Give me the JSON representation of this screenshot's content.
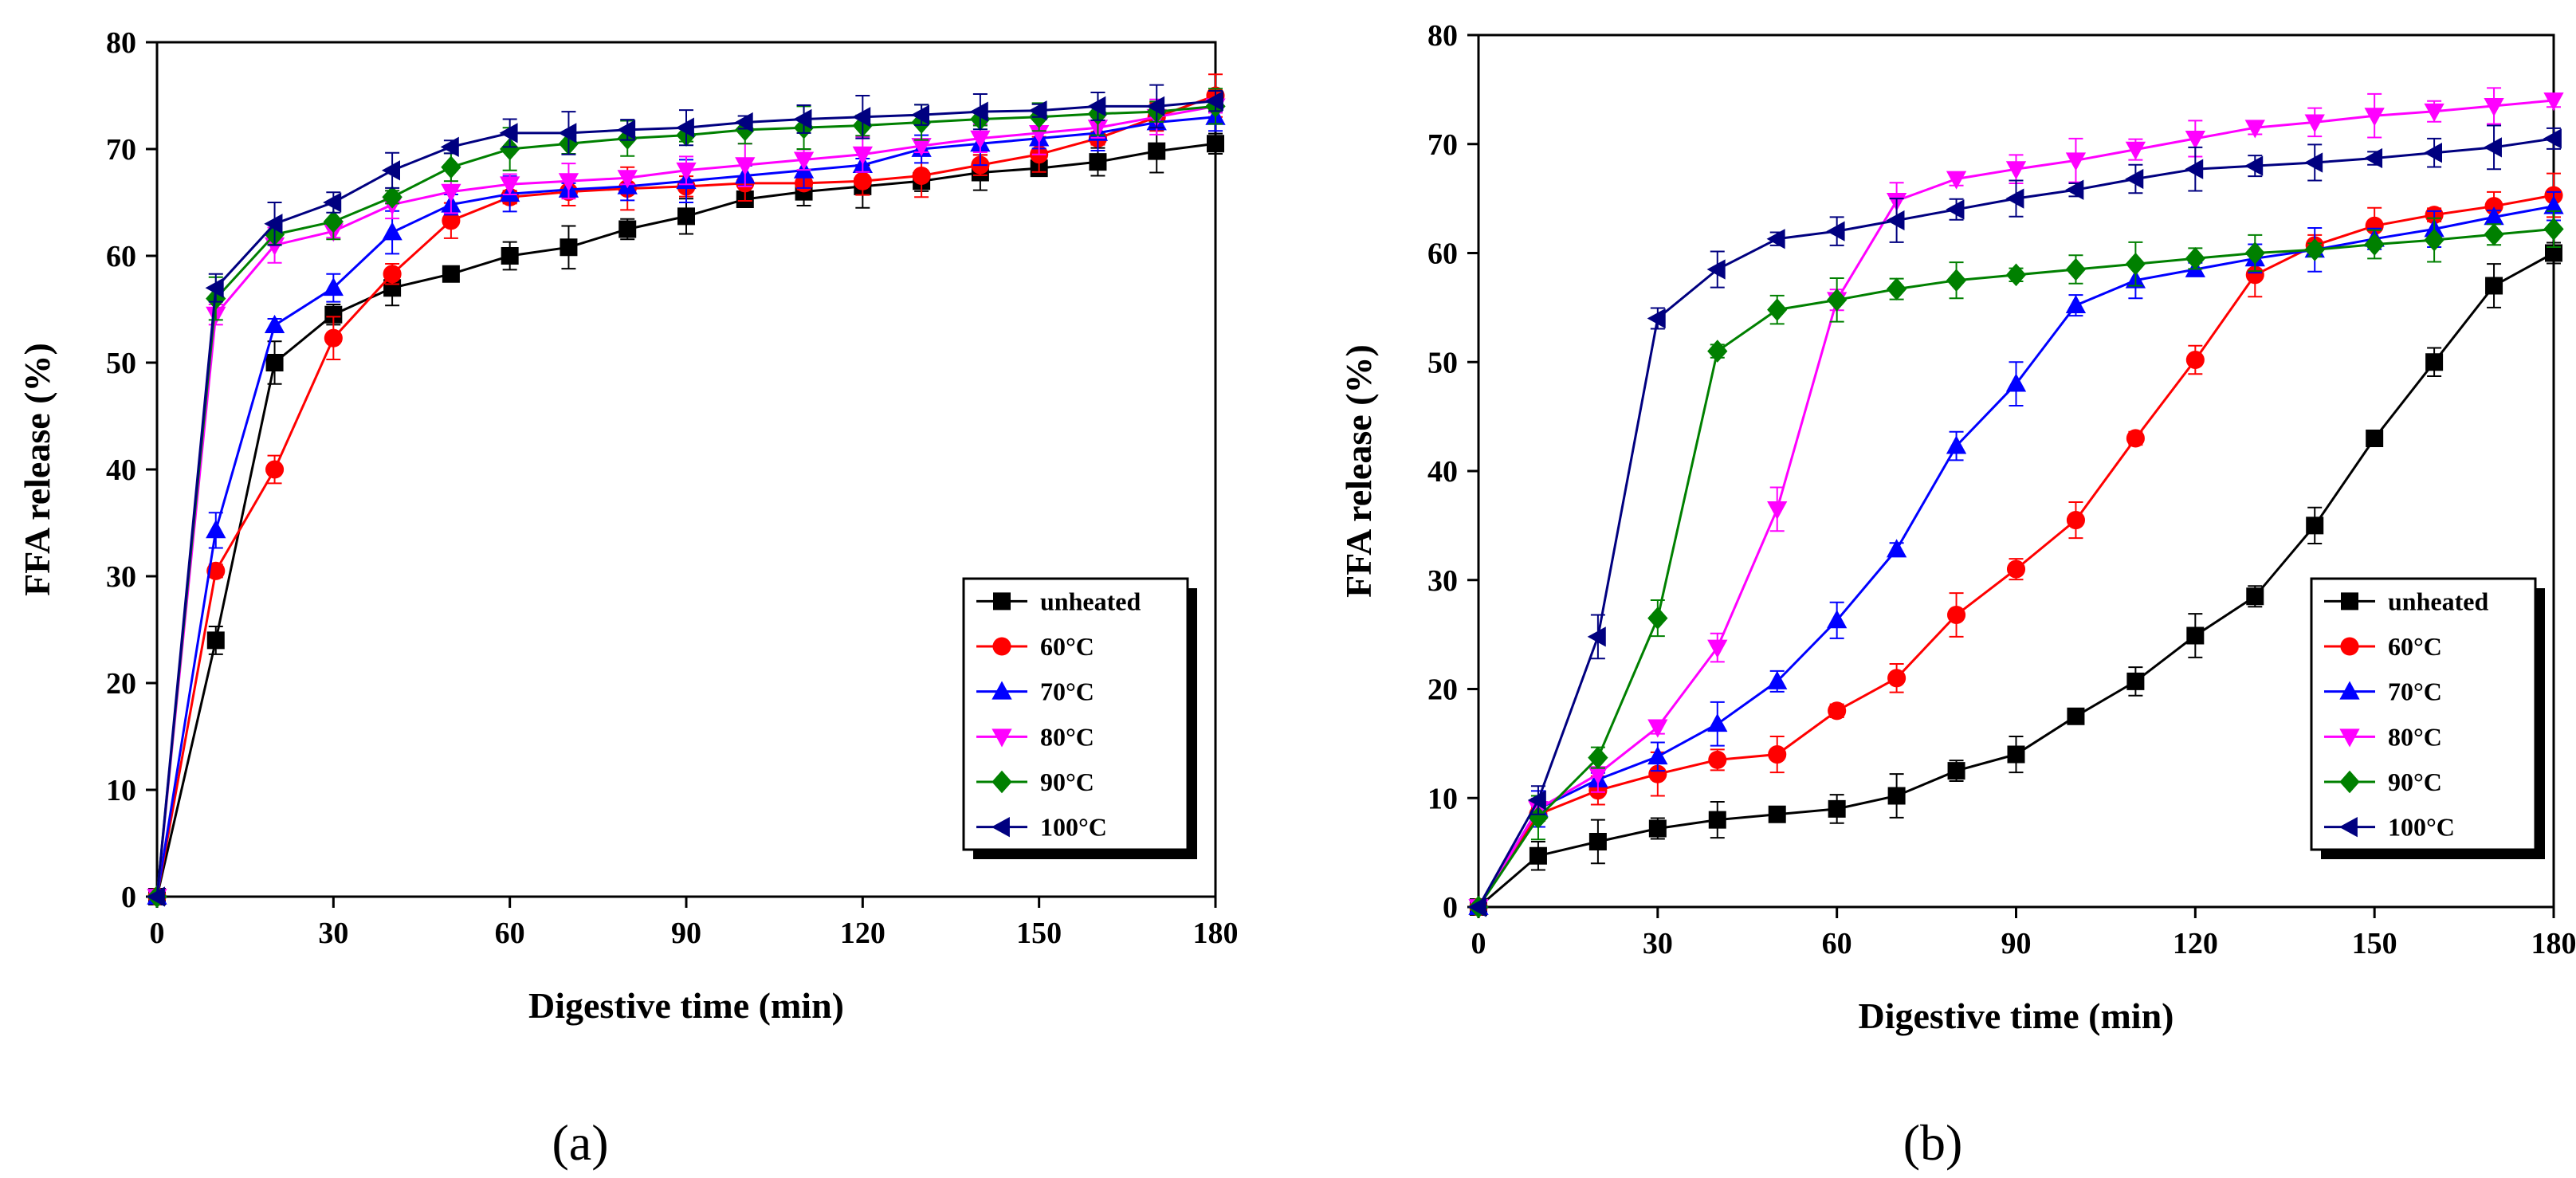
{
  "chart_data": [
    {
      "type": "line",
      "panel_label": "(a)",
      "xlabel": "Digestive time (min)",
      "ylabel": "FFA release (%)",
      "xlim": [
        0,
        180
      ],
      "ylim": [
        0,
        80
      ],
      "xticks": [
        "0",
        "30",
        "60",
        "90",
        "120",
        "150",
        "180"
      ],
      "yticks": [
        "0",
        "10",
        "20",
        "30",
        "40",
        "50",
        "60",
        "70",
        "80"
      ],
      "legend_position": "bottom-right",
      "x": [
        0,
        10,
        20,
        30,
        40,
        50,
        60,
        70,
        80,
        90,
        100,
        110,
        120,
        130,
        140,
        150,
        160,
        170,
        180
      ],
      "series": [
        {
          "name": "unheated",
          "color": "#000000",
          "marker": "square",
          "values": [
            0,
            24,
            50,
            54.5,
            57,
            58.3,
            60,
            60.8,
            62.5,
            63.7,
            65.3,
            66,
            66.5,
            67,
            67.8,
            68.2,
            68.8,
            69.8,
            70.5
          ]
        },
        {
          "name": "60°C",
          "color": "#ff0000",
          "marker": "circle",
          "values": [
            0,
            30.5,
            40,
            52.3,
            58.3,
            63.3,
            65.5,
            66,
            66.3,
            66.5,
            66.8,
            66.8,
            67,
            67.5,
            68.5,
            69.5,
            71,
            73,
            75
          ]
        },
        {
          "name": "70°C",
          "color": "#0000ff",
          "marker": "triangle-up",
          "values": [
            0,
            34.3,
            53.5,
            57,
            62.2,
            64.8,
            65.8,
            66.2,
            66.5,
            67,
            67.5,
            68,
            68.5,
            70,
            70.5,
            71,
            71.5,
            72.5,
            73
          ]
        },
        {
          "name": "80°C",
          "color": "#ff00ff",
          "marker": "triangle-down",
          "values": [
            0,
            54.5,
            61,
            62.3,
            64.8,
            66,
            66.7,
            67,
            67.3,
            68,
            68.5,
            69,
            69.5,
            70.3,
            71,
            71.5,
            72,
            73,
            74
          ]
        },
        {
          "name": "90°C",
          "color": "#008000",
          "marker": "diamond",
          "values": [
            0,
            56,
            62,
            63.2,
            65.5,
            68.3,
            70,
            70.5,
            71,
            71.3,
            71.8,
            72,
            72.2,
            72.5,
            72.8,
            73,
            73.3,
            73.5,
            74
          ]
        },
        {
          "name": "100°C",
          "color": "#000080",
          "marker": "triangle-left",
          "values": [
            0,
            57,
            63,
            65,
            68,
            70.2,
            71.5,
            71.5,
            71.8,
            72,
            72.5,
            72.8,
            73,
            73.2,
            73.5,
            73.6,
            74,
            74,
            74.5
          ]
        }
      ]
    },
    {
      "type": "line",
      "panel_label": "(b)",
      "xlabel": "Digestive time (min)",
      "ylabel": "FFA release (%)",
      "xlim": [
        0,
        180
      ],
      "ylim": [
        0,
        80
      ],
      "xticks": [
        "0",
        "30",
        "60",
        "90",
        "120",
        "150",
        "180"
      ],
      "yticks": [
        "0",
        "10",
        "20",
        "30",
        "40",
        "50",
        "60",
        "70",
        "80"
      ],
      "legend_position": "bottom-right",
      "x": [
        0,
        10,
        20,
        30,
        40,
        50,
        60,
        70,
        80,
        90,
        100,
        110,
        120,
        130,
        140,
        150,
        160,
        170,
        180
      ],
      "series": [
        {
          "name": "unheated",
          "color": "#000000",
          "marker": "square",
          "values": [
            0,
            4.7,
            6,
            7.2,
            8,
            8.5,
            9,
            10.2,
            12.5,
            14,
            17.5,
            20.7,
            24.9,
            28.5,
            35,
            43,
            50,
            57,
            60
          ]
        },
        {
          "name": "60°C",
          "color": "#ff0000",
          "marker": "circle",
          "values": [
            0,
            8.5,
            10.7,
            12.2,
            13.5,
            14,
            18,
            21,
            26.8,
            31,
            35.5,
            43,
            50.2,
            58,
            60.7,
            62.5,
            63.5,
            64.3,
            65.3
          ]
        },
        {
          "name": "70°C",
          "color": "#0000ff",
          "marker": "triangle-up",
          "values": [
            0,
            9,
            11.7,
            13.8,
            16.8,
            20.7,
            26.3,
            32.8,
            42.3,
            48,
            55.2,
            57.5,
            58.5,
            59.5,
            60.3,
            61.3,
            62.2,
            63.3,
            64.3
          ]
        },
        {
          "name": "80°C",
          "color": "#ff00ff",
          "marker": "triangle-down",
          "values": [
            0,
            9,
            12.2,
            16.5,
            23.8,
            36.5,
            55.7,
            64.8,
            66.8,
            67.7,
            68.5,
            69.5,
            70.5,
            71.5,
            72,
            72.6,
            73,
            73.5,
            74
          ]
        },
        {
          "name": "90°C",
          "color": "#008000",
          "marker": "diamond",
          "values": [
            0,
            8.2,
            13.7,
            26.5,
            51,
            54.8,
            55.7,
            56.7,
            57.5,
            58,
            58.5,
            59,
            59.5,
            60,
            60.3,
            60.8,
            61.2,
            61.7,
            62.2
          ]
        },
        {
          "name": "100°C",
          "color": "#000080",
          "marker": "triangle-left",
          "values": [
            0,
            9.8,
            24.8,
            54,
            58.5,
            61.3,
            62,
            63,
            64,
            65,
            65.8,
            66.8,
            67.7,
            68,
            68.3,
            68.7,
            69.2,
            69.7,
            70.5
          ]
        }
      ]
    }
  ]
}
